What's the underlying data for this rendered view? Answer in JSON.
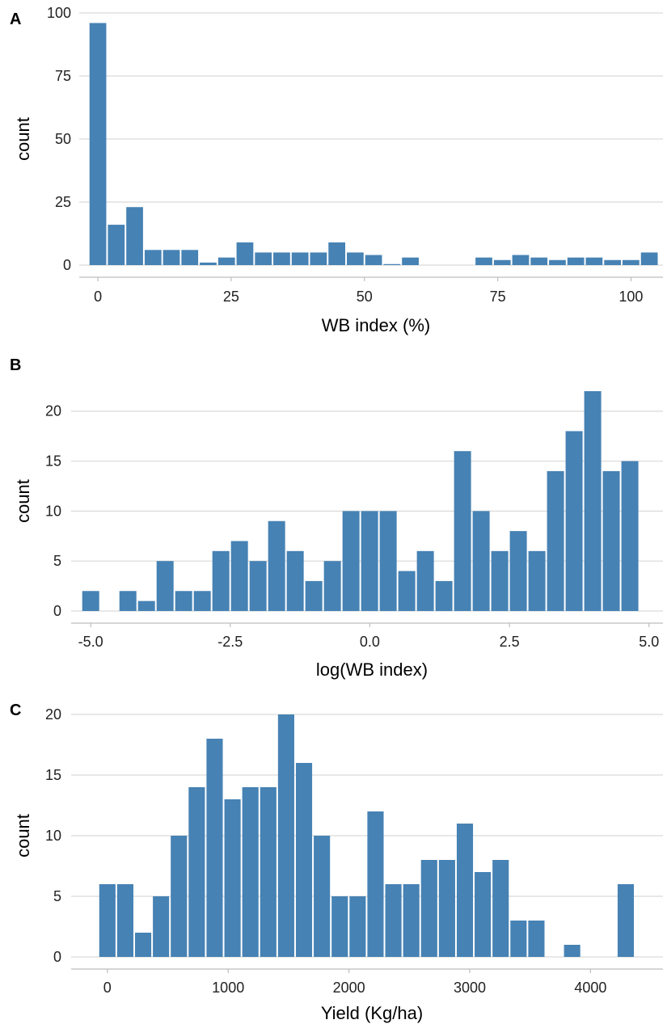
{
  "colors": {
    "bar": "#4682b4",
    "grid": "#d9d9d9",
    "axis": "#bdbdbd",
    "text": "#222222"
  },
  "chart_data": [
    {
      "type": "bar",
      "panel": "A",
      "xlabel": "WB index (%)",
      "ylabel": "count",
      "xlim": [
        -3.5,
        106
      ],
      "ylim": [
        0,
        100
      ],
      "xticks": [
        0,
        25,
        50,
        75,
        100
      ],
      "xtick_labels": [
        "0",
        "25",
        "50",
        "75",
        "100"
      ],
      "yticks": [
        0,
        25,
        50,
        75,
        100
      ],
      "ytick_labels": [
        "0",
        "25",
        "50",
        "75",
        "100"
      ],
      "bin_width": 3.448,
      "bin_start": -1.724,
      "values": [
        96,
        16,
        23,
        6,
        6,
        6,
        1,
        3,
        9,
        5,
        5,
        5,
        5,
        9,
        5,
        4,
        0.4,
        3,
        0,
        0,
        0,
        3,
        2,
        4,
        3,
        2,
        3,
        3,
        2,
        2,
        5
      ],
      "grid": true
    },
    {
      "type": "bar",
      "panel": "B",
      "xlabel": "log(WB index)",
      "ylabel": "count",
      "xlim": [
        -5.35,
        5.25
      ],
      "ylim": [
        0,
        22
      ],
      "xticks": [
        -5.0,
        -2.5,
        0.0,
        2.5,
        5.0
      ],
      "xtick_labels": [
        "-5.0",
        "-2.5",
        "0.0",
        "2.5",
        "5.0"
      ],
      "yticks": [
        0,
        5,
        10,
        15,
        20
      ],
      "ytick_labels": [
        "0",
        "5",
        "10",
        "15",
        "20"
      ],
      "bin_width": 0.333,
      "bin_start": -5.166,
      "values": [
        2,
        0,
        2,
        1,
        5,
        2,
        2,
        6,
        7,
        5,
        9,
        6,
        3,
        5,
        10,
        10,
        10,
        4,
        6,
        3,
        16,
        10,
        6,
        8,
        6,
        14,
        18,
        22,
        14,
        15
      ],
      "grid": true
    },
    {
      "type": "bar",
      "panel": "C",
      "xlabel": "Yield (Kg/ha)",
      "ylabel": "count",
      "xlim": [
        -300,
        4600
      ],
      "ylim": [
        0,
        20
      ],
      "xticks": [
        0,
        1000,
        2000,
        3000,
        4000
      ],
      "xtick_labels": [
        "0",
        "1000",
        "2000",
        "3000",
        "4000"
      ],
      "yticks": [
        0,
        5,
        10,
        15,
        20
      ],
      "ytick_labels": [
        "0",
        "5",
        "10",
        "15",
        "20"
      ],
      "bin_width": 148,
      "bin_start": -74,
      "values": [
        6,
        6,
        2,
        5,
        10,
        14,
        18,
        13,
        14,
        14,
        20,
        16,
        10,
        5,
        5,
        12,
        6,
        6,
        8,
        8,
        11,
        7,
        8,
        3,
        3,
        0,
        1,
        0,
        0,
        6
      ],
      "grid": true
    }
  ]
}
